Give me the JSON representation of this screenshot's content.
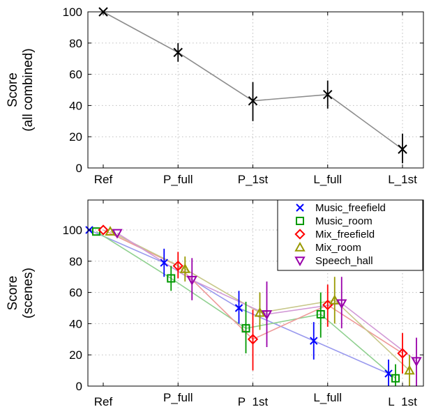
{
  "chart_data": [
    {
      "type": "line",
      "categories": [
        "Ref",
        "P_full",
        "P_1st",
        "L_full",
        "L_1st"
      ],
      "ylabel_lines": [
        "Score",
        "(all combined)"
      ],
      "yticks": [
        "0",
        "20",
        "40",
        "60",
        "80",
        "100"
      ],
      "ylim": [
        0,
        100
      ],
      "grid": true,
      "series": [
        {
          "color": "#000000",
          "line_color": "#8c8c8c",
          "marker": "x",
          "values": [
            100,
            74,
            43,
            47,
            12
          ],
          "err_low": [
            100,
            68,
            30,
            38,
            3
          ],
          "err_high": [
            100,
            80,
            55,
            56,
            22
          ]
        }
      ]
    },
    {
      "type": "line",
      "categories": [
        "Ref",
        "P_full",
        "P_1st",
        "L_full",
        "L_1st"
      ],
      "ylabel_lines": [
        "Score",
        "(scenes)"
      ],
      "yticks": [
        "0",
        "20",
        "40",
        "60",
        "80",
        "100"
      ],
      "ylim": [
        0,
        100
      ],
      "grid": true,
      "legend_position": "top-right",
      "series": [
        {
          "name": "Music_freefield",
          "color": "#0000ff",
          "line_color": "#9999ee",
          "marker": "x",
          "values": [
            100,
            79,
            50,
            29,
            8
          ],
          "err_low": [
            100,
            70,
            40,
            17,
            0
          ],
          "err_high": [
            100,
            88,
            61,
            41,
            17
          ]
        },
        {
          "name": "Music_room",
          "color": "#009900",
          "line_color": "#8fd08f",
          "marker": "square",
          "values": [
            99,
            69,
            37,
            46,
            5
          ],
          "err_low": [
            99,
            61,
            21,
            31,
            0
          ],
          "err_high": [
            99,
            77,
            54,
            60,
            14
          ]
        },
        {
          "name": "Mix_freefield",
          "color": "#ff0000",
          "line_color": "#ee9999",
          "marker": "diamond",
          "values": [
            100,
            77,
            30,
            52,
            21
          ],
          "err_low": [
            100,
            69,
            10,
            38,
            8
          ],
          "err_high": [
            100,
            86,
            49,
            65,
            34
          ]
        },
        {
          "name": "Mix_room",
          "color": "#999900",
          "line_color": "#c8c88a",
          "marker": "triangle-up",
          "values": [
            99,
            75,
            47,
            55,
            10
          ],
          "err_low": [
            99,
            67,
            36,
            40,
            0
          ],
          "err_high": [
            99,
            83,
            60,
            70,
            20
          ]
        },
        {
          "name": "Speech_hall",
          "color": "#9900aa",
          "line_color": "#d29ad6",
          "marker": "triangle-down",
          "values": [
            98,
            68,
            46,
            53,
            16
          ],
          "err_low": [
            98,
            55,
            25,
            37,
            0
          ],
          "err_high": [
            98,
            82,
            67,
            70,
            31
          ]
        }
      ]
    }
  ]
}
